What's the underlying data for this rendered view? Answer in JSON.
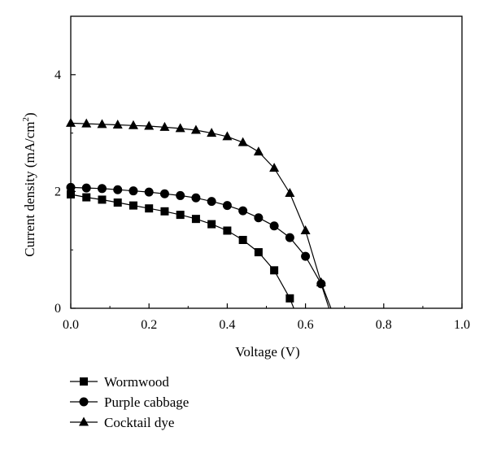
{
  "chart_data": {
    "type": "line",
    "xlabel": "Voltage (V)",
    "ylabel_main": "Current density (mA/cm",
    "ylabel_sup": "2",
    "ylabel_close": ")",
    "xlim": [
      0,
      1.0
    ],
    "ylim": [
      0,
      5
    ],
    "x_ticks": [
      "0.0",
      "0.2",
      "0.4",
      "0.6",
      "0.8",
      "1.0"
    ],
    "y_ticks": [
      "0",
      "2",
      "4"
    ],
    "grid": false,
    "legend_position": "bottom-left",
    "series": [
      {
        "name": "Wormwood",
        "marker": "square",
        "x": [
          0.0,
          0.04,
          0.08,
          0.12,
          0.16,
          0.2,
          0.24,
          0.28,
          0.32,
          0.36,
          0.4,
          0.44,
          0.48,
          0.52,
          0.56
        ],
        "y": [
          1.95,
          1.9,
          1.86,
          1.81,
          1.76,
          1.71,
          1.66,
          1.6,
          1.53,
          1.44,
          1.33,
          1.17,
          0.96,
          0.65,
          0.17
        ],
        "curve_x": [
          0.0,
          0.04,
          0.08,
          0.12,
          0.16,
          0.2,
          0.24,
          0.28,
          0.32,
          0.36,
          0.4,
          0.44,
          0.48,
          0.52,
          0.56,
          0.57
        ],
        "curve_y": [
          1.95,
          1.9,
          1.86,
          1.81,
          1.76,
          1.71,
          1.66,
          1.6,
          1.53,
          1.44,
          1.33,
          1.17,
          0.96,
          0.65,
          0.17,
          0.0
        ]
      },
      {
        "name": "Purple cabbage",
        "marker": "circle",
        "x": [
          0.0,
          0.04,
          0.08,
          0.12,
          0.16,
          0.2,
          0.24,
          0.28,
          0.32,
          0.36,
          0.4,
          0.44,
          0.48,
          0.52,
          0.56,
          0.6,
          0.64
        ],
        "y": [
          2.07,
          2.06,
          2.05,
          2.03,
          2.01,
          1.99,
          1.96,
          1.93,
          1.89,
          1.83,
          1.76,
          1.67,
          1.55,
          1.41,
          1.21,
          0.89,
          0.42
        ],
        "curve_x": [
          0.0,
          0.04,
          0.08,
          0.12,
          0.16,
          0.2,
          0.24,
          0.28,
          0.32,
          0.36,
          0.4,
          0.44,
          0.48,
          0.52,
          0.56,
          0.6,
          0.64,
          0.66
        ],
        "curve_y": [
          2.07,
          2.06,
          2.05,
          2.03,
          2.01,
          1.99,
          1.96,
          1.93,
          1.89,
          1.83,
          1.76,
          1.67,
          1.55,
          1.41,
          1.21,
          0.89,
          0.42,
          0.0
        ]
      },
      {
        "name": "Cocktail dye",
        "marker": "triangle",
        "x": [
          0.0,
          0.04,
          0.08,
          0.12,
          0.16,
          0.2,
          0.24,
          0.28,
          0.32,
          0.36,
          0.4,
          0.44,
          0.48,
          0.52,
          0.56,
          0.6,
          0.64
        ],
        "y": [
          3.17,
          3.16,
          3.15,
          3.14,
          3.13,
          3.12,
          3.1,
          3.08,
          3.05,
          3.0,
          2.94,
          2.84,
          2.68,
          2.4,
          1.97,
          1.33,
          0.44
        ],
        "curve_x": [
          0.0,
          0.04,
          0.08,
          0.12,
          0.16,
          0.2,
          0.24,
          0.28,
          0.32,
          0.36,
          0.4,
          0.44,
          0.48,
          0.52,
          0.56,
          0.6,
          0.64,
          0.665
        ],
        "curve_y": [
          3.17,
          3.16,
          3.15,
          3.14,
          3.13,
          3.12,
          3.1,
          3.08,
          3.05,
          3.0,
          2.94,
          2.84,
          2.68,
          2.4,
          1.97,
          1.33,
          0.44,
          0.0
        ]
      }
    ]
  }
}
